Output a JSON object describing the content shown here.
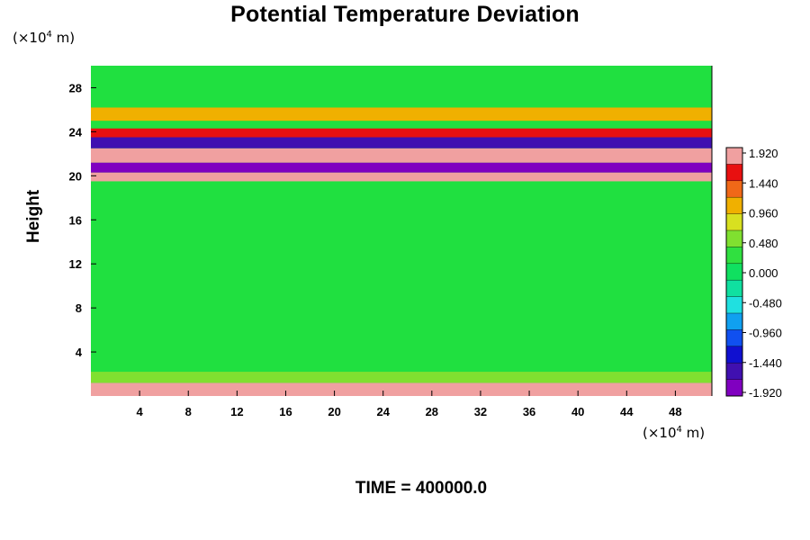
{
  "chart_data": {
    "type": "heatmap",
    "title": "Potential Temperature Deviation",
    "ylabel": "Height",
    "y_unit": {
      "prefix": "(×10",
      "exponent": "4",
      "suffix": " m)"
    },
    "x_unit": {
      "prefix": "(×10",
      "exponent": "4",
      "suffix": " m)"
    },
    "footer": "TIME = 400000.0",
    "xlim": [
      0,
      51
    ],
    "ylim": [
      0,
      30
    ],
    "x_ticks": [
      4,
      8,
      12,
      16,
      20,
      24,
      28,
      32,
      36,
      40,
      44,
      48
    ],
    "y_ticks": [
      4,
      8,
      12,
      16,
      20,
      24,
      28
    ],
    "colorbar": {
      "labels": [
        "1.920",
        "1.440",
        "0.960",
        "0.480",
        "0.000",
        "-0.480",
        "-0.960",
        "-1.440",
        "-1.920"
      ],
      "values": [
        1.92,
        1.44,
        0.96,
        0.48,
        0.0,
        -0.48,
        -0.96,
        -1.44,
        -1.92
      ],
      "colors_top_to_bottom": [
        "#f0a0a0",
        "#e81010",
        "#f06818",
        "#f0b000",
        "#d8e020",
        "#80e030",
        "#30e040",
        "#10e060",
        "#10e0a0",
        "#20e0e0",
        "#10a0f0",
        "#1050f0",
        "#1010d0",
        "#4010b0",
        "#8000c0"
      ]
    },
    "bands": [
      {
        "y_from": 0.0,
        "y_to": 1.2,
        "value": 1.9
      },
      {
        "y_from": 1.2,
        "y_to": 2.2,
        "value": 0.5
      },
      {
        "y_from": 19.5,
        "y_to": 20.3,
        "value": 1.9
      },
      {
        "y_from": 20.3,
        "y_to": 21.2,
        "value": -1.9
      },
      {
        "y_from": 21.2,
        "y_to": 22.5,
        "value": 1.9
      },
      {
        "y_from": 22.5,
        "y_to": 23.5,
        "value": -1.6
      },
      {
        "y_from": 23.5,
        "y_to": 24.3,
        "value": 1.6
      },
      {
        "y_from": 25.0,
        "y_to": 26.2,
        "value": 1.2
      }
    ]
  }
}
